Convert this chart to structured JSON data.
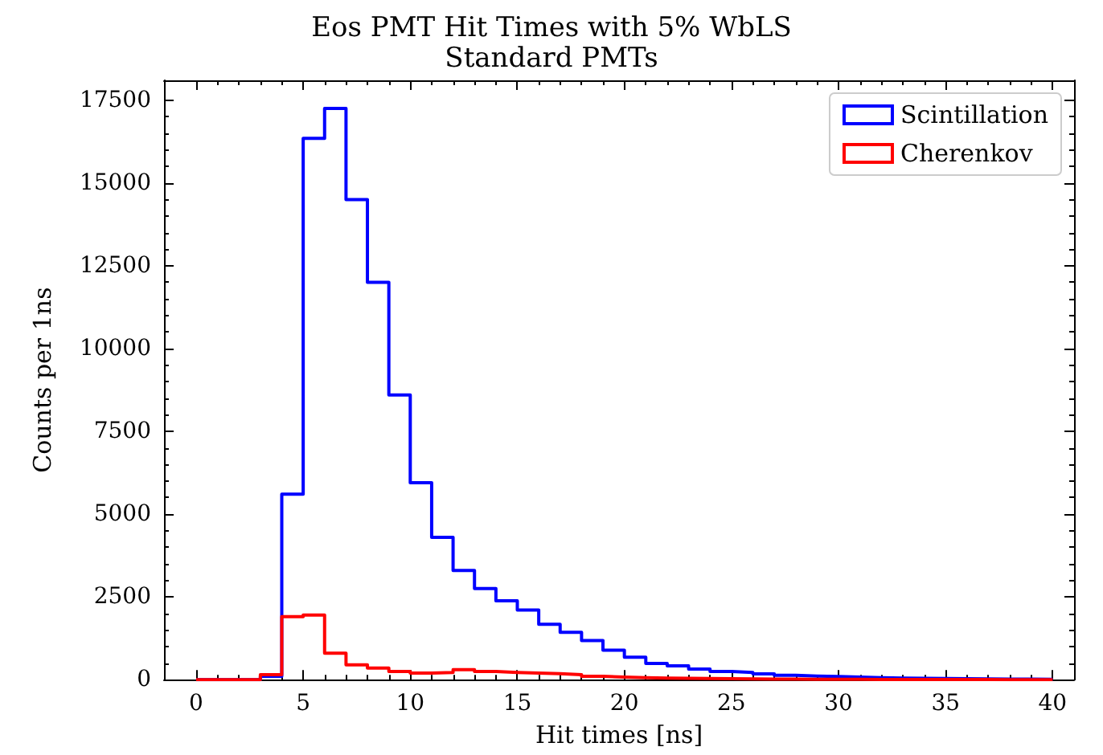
{
  "chart_data": {
    "type": "histogram",
    "title": "Eos PMT Hit Times with 5% WbLS",
    "subtitle": "Standard PMTs",
    "xlabel": "Hit times [ns]",
    "ylabel": "Counts per 1ns",
    "bins": [
      0,
      1,
      2,
      3,
      4,
      5,
      6,
      7,
      8,
      9,
      10,
      11,
      12,
      13,
      14,
      15,
      16,
      17,
      18,
      19,
      20,
      21,
      22,
      23,
      24,
      25,
      26,
      27,
      28,
      29,
      30,
      31,
      32,
      33,
      34,
      35,
      36,
      37,
      38,
      39,
      40
    ],
    "series": [
      {
        "name": "Scintillation",
        "color": "#0000ff",
        "values": [
          0,
          0,
          0,
          100,
          5600,
          16350,
          17250,
          14500,
          12000,
          8600,
          5950,
          4300,
          3300,
          2750,
          2380,
          2100,
          1670,
          1430,
          1180,
          890,
          680,
          490,
          415,
          320,
          250,
          220,
          175,
          130,
          110,
          95,
          80,
          60,
          50,
          40,
          35,
          30,
          25,
          20,
          15,
          10
        ]
      },
      {
        "name": "Cherenkov",
        "color": "#ff0000",
        "values": [
          0,
          0,
          0,
          150,
          1900,
          1950,
          800,
          450,
          350,
          250,
          200,
          220,
          300,
          250,
          220,
          200,
          180,
          150,
          100,
          80,
          60,
          50,
          40,
          35,
          30,
          25,
          20,
          15,
          12,
          10,
          8,
          6,
          5,
          4,
          3,
          2,
          2,
          1,
          1,
          0
        ]
      }
    ],
    "xlim": [
      -1.5,
      41
    ],
    "xticks": [
      0,
      5,
      10,
      15,
      20,
      25,
      30,
      35,
      40
    ],
    "ylim": [
      0,
      18100
    ],
    "yticks": [
      0,
      2500,
      5000,
      7500,
      10000,
      12500,
      15000,
      17500
    ],
    "grid": false,
    "legend": "top right"
  }
}
